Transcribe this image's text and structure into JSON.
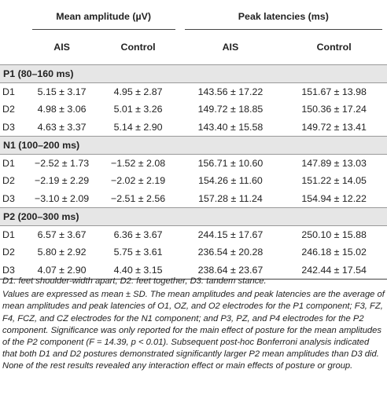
{
  "header": {
    "group_amp": "Mean amplitude (µV)",
    "group_lat": "Peak latencies (ms)",
    "cols": [
      "AIS",
      "Control",
      "AIS",
      "Control"
    ]
  },
  "sections": [
    {
      "title": "P1 (80–160 ms)",
      "rows": [
        {
          "label": "D1",
          "v": [
            "5.15 ± 3.17",
            "4.95 ± 2.87",
            "143.56 ± 17.22",
            "151.67 ± 13.98"
          ]
        },
        {
          "label": "D2",
          "v": [
            "4.98 ± 3.06",
            "5.01 ± 3.26",
            "149.72 ± 18.85",
            "150.36 ± 17.24"
          ]
        },
        {
          "label": "D3",
          "v": [
            "4.63 ± 3.37",
            "5.14 ± 2.90",
            "143.40 ± 15.58",
            "149.72 ± 13.41"
          ]
        }
      ]
    },
    {
      "title": "N1 (100–200 ms)",
      "rows": [
        {
          "label": "D1",
          "v": [
            "−2.52 ± 1.73",
            "−1.52 ± 2.08",
            "156.71 ± 10.60",
            "147.89 ± 13.03"
          ]
        },
        {
          "label": "D2",
          "v": [
            "−2.19 ± 2.29",
            "−2.02 ± 2.19",
            "154.26 ± 11.60",
            "151.22 ± 14.05"
          ]
        },
        {
          "label": "D3",
          "v": [
            "−3.10 ± 2.09",
            "−2.51 ± 2.56",
            "157.28 ± 11.24",
            "154.94 ± 12.22"
          ]
        }
      ]
    },
    {
      "title": "P2 (200–300 ms)",
      "rows": [
        {
          "label": "D1",
          "v": [
            "6.57 ± 3.67",
            "6.36 ± 3.67",
            "244.15 ± 17.67",
            "250.10 ± 15.88"
          ]
        },
        {
          "label": "D2",
          "v": [
            "5.80 ± 2.92",
            "5.75 ± 3.61",
            "236.54 ± 20.28",
            "246.18 ± 15.02"
          ]
        },
        {
          "label": "D3",
          "v": [
            "4.07 ± 2.90",
            "4.40 ± 3.15",
            "238.64 ± 23.67",
            "242.44 ± 17.54"
          ]
        }
      ]
    }
  ],
  "footnote1": "D1: feet shoulder-width apart, D2: feet together, D3: tandem stance.",
  "footnote2": "Values are expressed as mean ± SD. The mean amplitudes and peak latencies are the average of mean amplitudes and peak latencies of O1, OZ, and O2 electrodes for the P1 component; F3, FZ, F4, FCZ, and CZ electrodes for the N1 component; and P3, PZ, and P4 electrodes for the P2 component. Significance was only reported for the main effect of posture for the mean amplitudes of the P2 component (F = 14.39, p < 0.01). Subsequent post-hoc Bonferroni analysis indicated that both D1 and D2 postures demonstrated significantly larger P2 mean amplitudes than D3 did. None of the rest results revealed any interaction effect or main effects of posture or group."
}
